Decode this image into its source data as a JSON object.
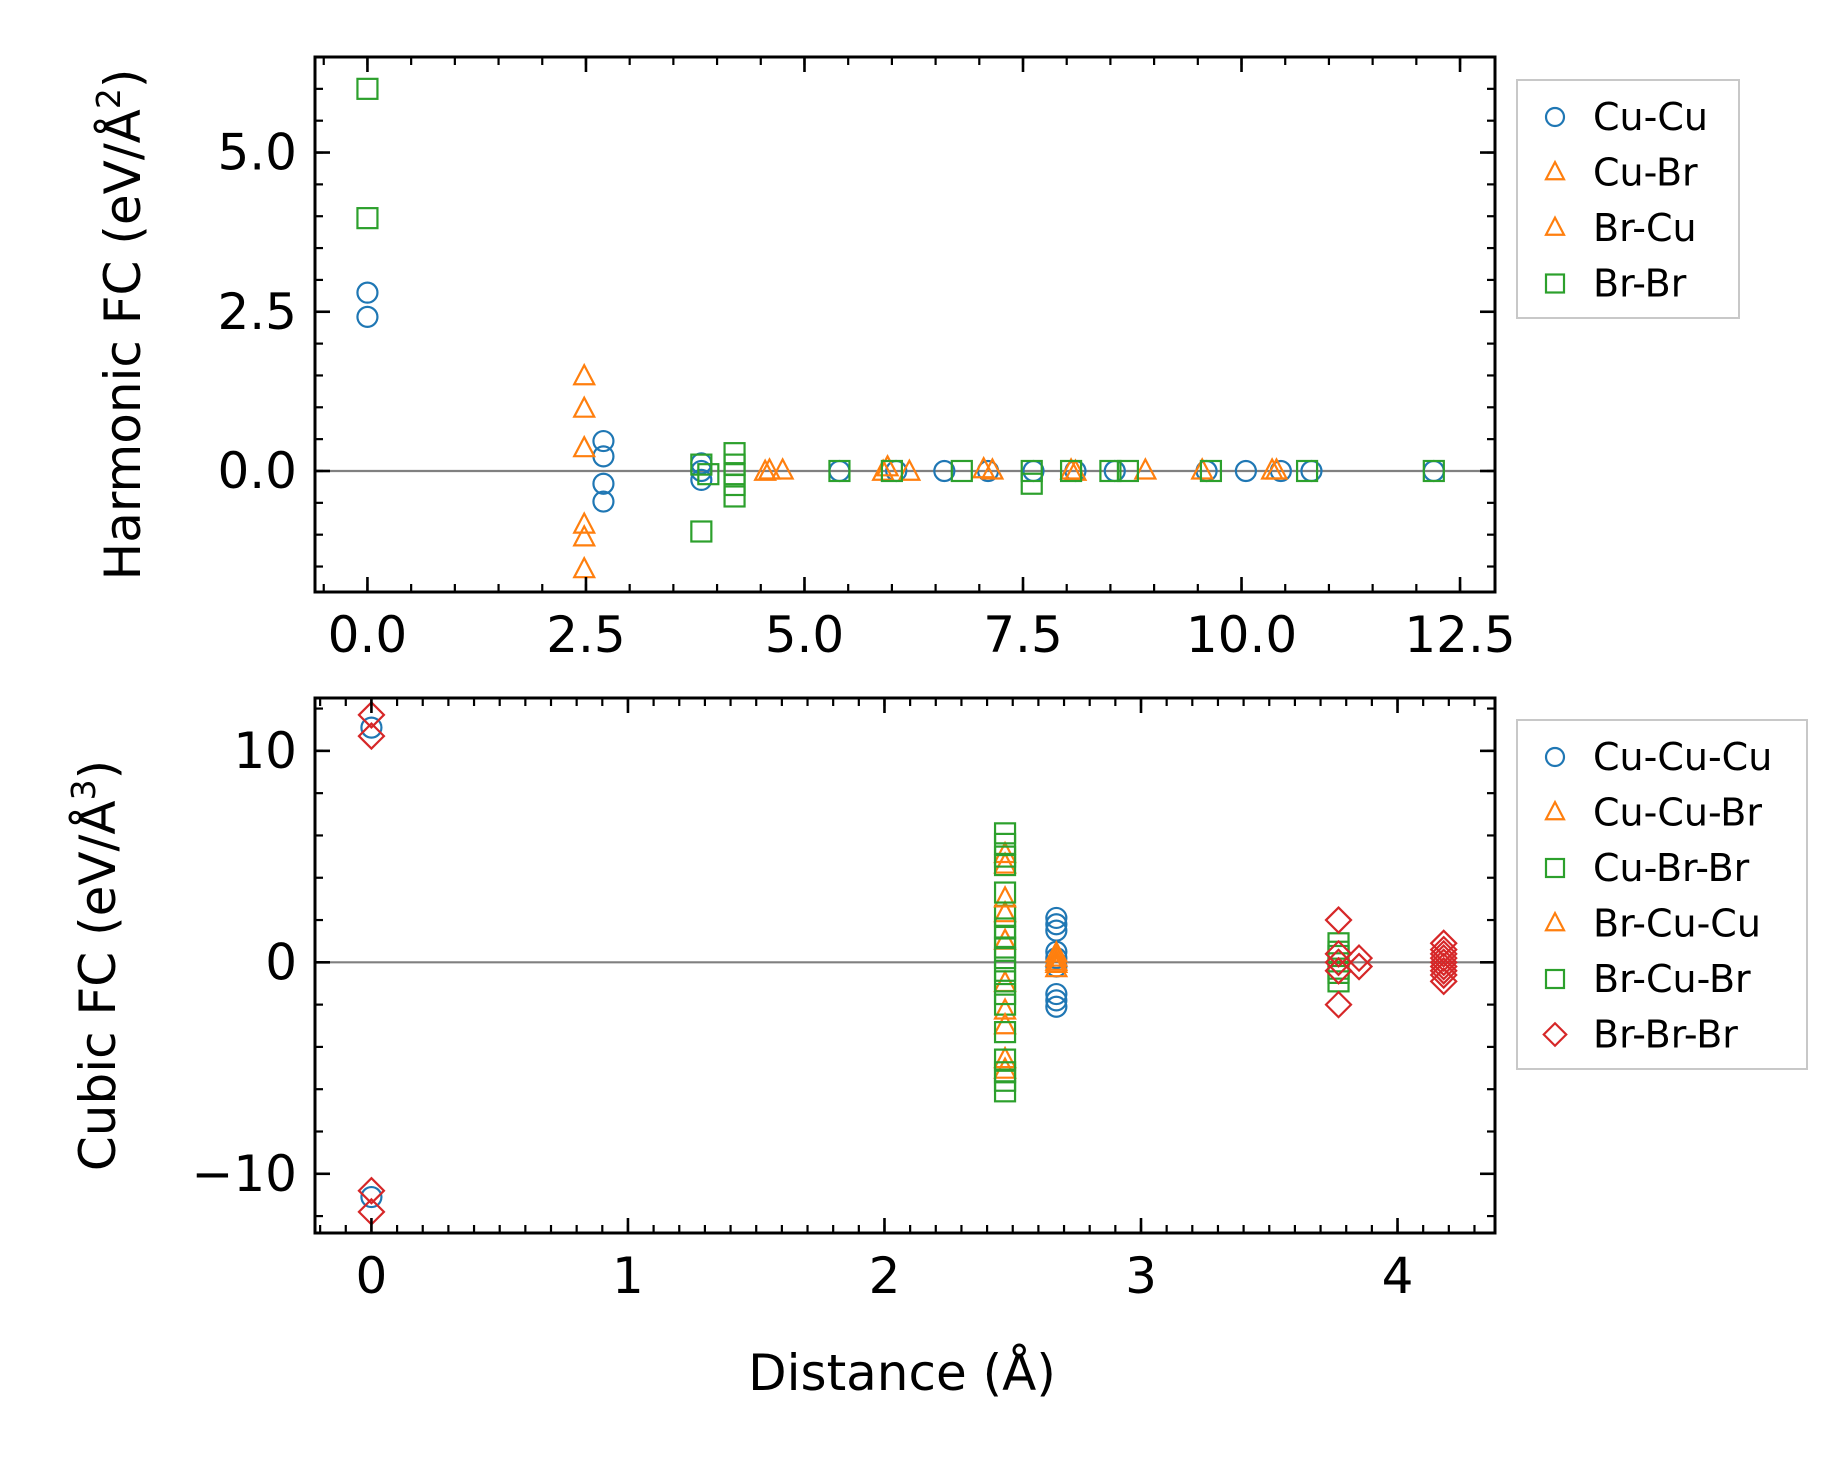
{
  "colors": {
    "blue": "#1f77b4",
    "orange": "#ff7f0e",
    "green": "#2ca02c",
    "red": "#d62728",
    "zero_line": "#808080"
  },
  "chart_data": [
    {
      "type": "scatter",
      "ylabel": "Harmonic FC (eV/Å²)",
      "ylabel_main": "Harmonic FC (eV/Å",
      "ylabel_sup": "2",
      "ylabel_close": ")",
      "xlabel": "",
      "xlim": [
        -0.6,
        12.9
      ],
      "ylim": [
        -1.9,
        6.5
      ],
      "xticks": [
        0.0,
        2.5,
        5.0,
        7.5,
        10.0,
        12.5
      ],
      "xtick_labels": [
        "0.0",
        "2.5",
        "5.0",
        "7.5",
        "10.0",
        "12.5"
      ],
      "yticks": [
        0.0,
        2.5,
        5.0
      ],
      "ytick_labels": [
        "0.0",
        "2.5",
        "5.0"
      ],
      "zero_line": true,
      "legend": "upper right, outside",
      "series": [
        {
          "name": "Cu-Cu",
          "marker": "circle",
          "color": "#1f77b4",
          "points": [
            [
              0,
              2.8
            ],
            [
              0,
              2.42
            ],
            [
              2.7,
              0.47
            ],
            [
              2.7,
              0.23
            ],
            [
              2.7,
              -0.2
            ],
            [
              2.7,
              -0.48
            ],
            [
              3.82,
              0.12
            ],
            [
              3.82,
              0.0
            ],
            [
              3.82,
              -0.14
            ],
            [
              5.4,
              0.0
            ],
            [
              6.05,
              0.0
            ],
            [
              6.6,
              0.0
            ],
            [
              7.1,
              0.0
            ],
            [
              7.62,
              0.0
            ],
            [
              8.1,
              0.0
            ],
            [
              8.55,
              0.0
            ],
            [
              9.6,
              0.0
            ],
            [
              10.05,
              0.0
            ],
            [
              10.45,
              0.0
            ],
            [
              10.8,
              0.0
            ],
            [
              12.2,
              0.0
            ]
          ]
        },
        {
          "name": "Cu-Br",
          "marker": "triangle",
          "color": "#ff7f0e",
          "points": [
            [
              2.48,
              1.48
            ],
            [
              2.48,
              0.97
            ],
            [
              2.48,
              0.35
            ],
            [
              2.48,
              -0.85
            ],
            [
              2.48,
              -1.05
            ],
            [
              2.48,
              -1.55
            ],
            [
              4.55,
              -0.02
            ],
            [
              4.75,
              0.0
            ],
            [
              5.95,
              0.05
            ],
            [
              6.2,
              -0.02
            ],
            [
              7.15,
              0.0
            ],
            [
              8.05,
              0.0
            ],
            [
              8.9,
              0.0
            ],
            [
              9.55,
              0.0
            ],
            [
              10.4,
              0.0
            ]
          ]
        },
        {
          "name": "Br-Cu",
          "marker": "triangle",
          "color": "#ff7f0e",
          "points": [
            [
              4.6,
              0.0
            ],
            [
              5.9,
              -0.02
            ],
            [
              7.05,
              0.02
            ],
            [
              8.1,
              -0.02
            ],
            [
              10.35,
              0.0
            ]
          ]
        },
        {
          "name": "Br-Br",
          "marker": "square",
          "color": "#2ca02c",
          "points": [
            [
              0,
              6.0
            ],
            [
              0,
              3.97
            ],
            [
              3.82,
              -0.95
            ],
            [
              3.82,
              0.1
            ],
            [
              3.9,
              -0.05
            ],
            [
              4.2,
              0.28
            ],
            [
              4.2,
              0.1
            ],
            [
              4.2,
              -0.05
            ],
            [
              4.2,
              -0.22
            ],
            [
              4.2,
              -0.4
            ],
            [
              5.4,
              0.0
            ],
            [
              6.0,
              0.0
            ],
            [
              6.8,
              0.0
            ],
            [
              7.6,
              -0.2
            ],
            [
              7.6,
              0.0
            ],
            [
              8.05,
              0.0
            ],
            [
              8.5,
              0.0
            ],
            [
              8.7,
              0.0
            ],
            [
              9.65,
              0.0
            ],
            [
              10.75,
              0.0
            ],
            [
              12.2,
              0.0
            ]
          ]
        }
      ]
    },
    {
      "type": "scatter",
      "ylabel": "Cubic FC (eV/Å³)",
      "ylabel_main": "Cubic FC (eV/Å",
      "ylabel_sup": "3",
      "ylabel_close": ")",
      "xlabel": "Distance (Å)",
      "xlim": [
        -0.22,
        4.38
      ],
      "ylim": [
        -12.8,
        12.5
      ],
      "xticks": [
        0,
        1,
        2,
        3,
        4
      ],
      "xtick_labels": [
        "0",
        "1",
        "2",
        "3",
        "4"
      ],
      "yticks": [
        -10,
        0,
        10
      ],
      "ytick_labels": [
        "−10",
        "0",
        "10"
      ],
      "zero_line": true,
      "legend": "upper right, outside",
      "series": [
        {
          "name": "Cu-Cu-Cu",
          "marker": "circle",
          "color": "#1f77b4",
          "points": [
            [
              0,
              11.1
            ],
            [
              0,
              -11.1
            ],
            [
              2.67,
              2.1
            ],
            [
              2.67,
              1.8
            ],
            [
              2.67,
              1.5
            ],
            [
              2.67,
              0.5
            ],
            [
              2.67,
              0.2
            ],
            [
              2.67,
              -0.2
            ],
            [
              2.67,
              -1.5
            ],
            [
              2.67,
              -1.8
            ],
            [
              2.67,
              -2.1
            ]
          ]
        },
        {
          "name": "Cu-Cu-Br",
          "marker": "triangle",
          "color": "#ff7f0e",
          "points": [
            [
              2.47,
              5.1
            ],
            [
              2.47,
              4.6
            ],
            [
              2.47,
              2.3
            ],
            [
              2.47,
              1.0
            ],
            [
              2.47,
              -1.0
            ],
            [
              2.47,
              -2.3
            ],
            [
              2.47,
              -4.6
            ],
            [
              2.47,
              -5.1
            ],
            [
              2.67,
              0.4
            ],
            [
              2.67,
              0.0
            ],
            [
              2.67,
              -0.3
            ]
          ]
        },
        {
          "name": "Cu-Br-Br",
          "marker": "square",
          "color": "#2ca02c",
          "points": [
            [
              2.47,
              6.1
            ],
            [
              2.47,
              5.6
            ],
            [
              2.47,
              5.0
            ],
            [
              2.47,
              4.6
            ],
            [
              2.47,
              2.2
            ],
            [
              2.47,
              1.6
            ],
            [
              2.47,
              1.2
            ],
            [
              2.47,
              0.7
            ],
            [
              2.47,
              0.2
            ],
            [
              2.47,
              -0.4
            ],
            [
              2.47,
              -0.9
            ],
            [
              2.47,
              -1.5
            ],
            [
              2.47,
              -2.0
            ],
            [
              2.47,
              -4.6
            ],
            [
              2.47,
              -5.2
            ],
            [
              2.47,
              -5.6
            ],
            [
              2.47,
              -6.1
            ],
            [
              3.77,
              0.9
            ],
            [
              3.77,
              0.3
            ],
            [
              3.77,
              -0.3
            ],
            [
              3.77,
              -0.9
            ]
          ]
        },
        {
          "name": "Br-Cu-Cu",
          "marker": "triangle",
          "color": "#ff7f0e",
          "points": [
            [
              2.47,
              3.0
            ],
            [
              2.47,
              -3.0
            ],
            [
              2.67,
              0.2
            ],
            [
              2.67,
              -0.1
            ]
          ]
        },
        {
          "name": "Br-Cu-Br",
          "marker": "square",
          "color": "#2ca02c",
          "points": [
            [
              2.47,
              3.3
            ],
            [
              2.47,
              -3.3
            ],
            [
              3.77,
              0.5
            ],
            [
              3.77,
              -0.5
            ]
          ]
        },
        {
          "name": "Br-Br-Br",
          "marker": "diamond",
          "color": "#d62728",
          "points": [
            [
              0,
              11.7
            ],
            [
              0,
              10.7
            ],
            [
              0,
              -10.8
            ],
            [
              0,
              -11.8
            ],
            [
              3.77,
              2.0
            ],
            [
              3.77,
              0.4
            ],
            [
              3.77,
              0.0
            ],
            [
              3.77,
              -0.4
            ],
            [
              3.77,
              -2.0
            ],
            [
              3.85,
              0.2
            ],
            [
              3.85,
              -0.2
            ],
            [
              4.18,
              0.9
            ],
            [
              4.18,
              0.6
            ],
            [
              4.18,
              0.4
            ],
            [
              4.18,
              0.2
            ],
            [
              4.18,
              0.0
            ],
            [
              4.18,
              -0.2
            ],
            [
              4.18,
              -0.4
            ],
            [
              4.18,
              -0.6
            ],
            [
              4.18,
              -0.9
            ]
          ]
        }
      ]
    }
  ]
}
